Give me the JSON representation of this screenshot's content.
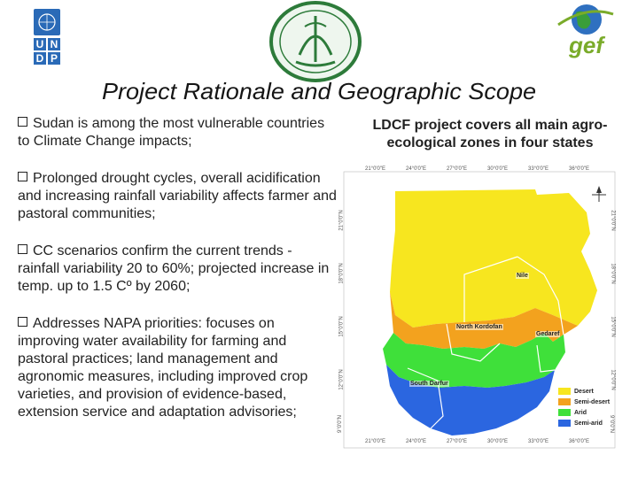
{
  "logos": {
    "undp": [
      "U",
      "N",
      "D",
      "P"
    ],
    "gef": "gef"
  },
  "title": "Project Rationale and Geographic Scope",
  "bullets": [
    "Sudan is among the most vulnerable countries to Climate Change impacts;",
    "Prolonged drought cycles, overall acidification and increasing rainfall variability affects farmer and pastoral communities;",
    "CC scenarios confirm the current trends - rainfall variability 20 to 60%; projected increase in temp. up to 1.5 Cº by 2060;",
    "Addresses NAPA priorities: focuses on improving water availability for farming and pastoral practices; land management and agronomic measures, including improved crop varieties, and provision of evidence-based, extension service and adaptation advisories;"
  ],
  "right_heading": "LDCF project covers all main agro-ecological zones in four states",
  "map": {
    "colors": {
      "desert": "#f7e61f",
      "semi_desert": "#f3a21e",
      "arid": "#3fe03a",
      "semi_arid": "#2b66e0",
      "border": "#ffffff"
    },
    "top_coords": [
      "21°0'0\"E",
      "24°0'0\"E",
      "27°0'0\"E",
      "30°0'0\"E",
      "33°0'0\"E",
      "36°0'0\"E",
      "39°0'0\"E"
    ],
    "bottom_coords": [
      "21°0'0\"E",
      "24°0'0\"E",
      "27°0'0\"E",
      "30°0'0\"E",
      "33°0'0\"E",
      "36°0'0\"E",
      "39°0'0\"E"
    ],
    "left_coords": [
      "21°0'0\"N",
      "18°0'0\"N",
      "15°0'0\"N",
      "12°0'0\"N",
      "9°0'0\"N"
    ],
    "right_coords": [
      "21°0'0\"N",
      "18°0'0\"N",
      "15°0'0\"N",
      "12°0'0\"N",
      "9°0'0\"N"
    ],
    "state_labels": [
      "Nile",
      "North Kordofan",
      "Gedaref",
      "South Darfur"
    ],
    "legend": [
      "Desert",
      "Semi-desert",
      "Arid",
      "Semi-arid"
    ]
  }
}
